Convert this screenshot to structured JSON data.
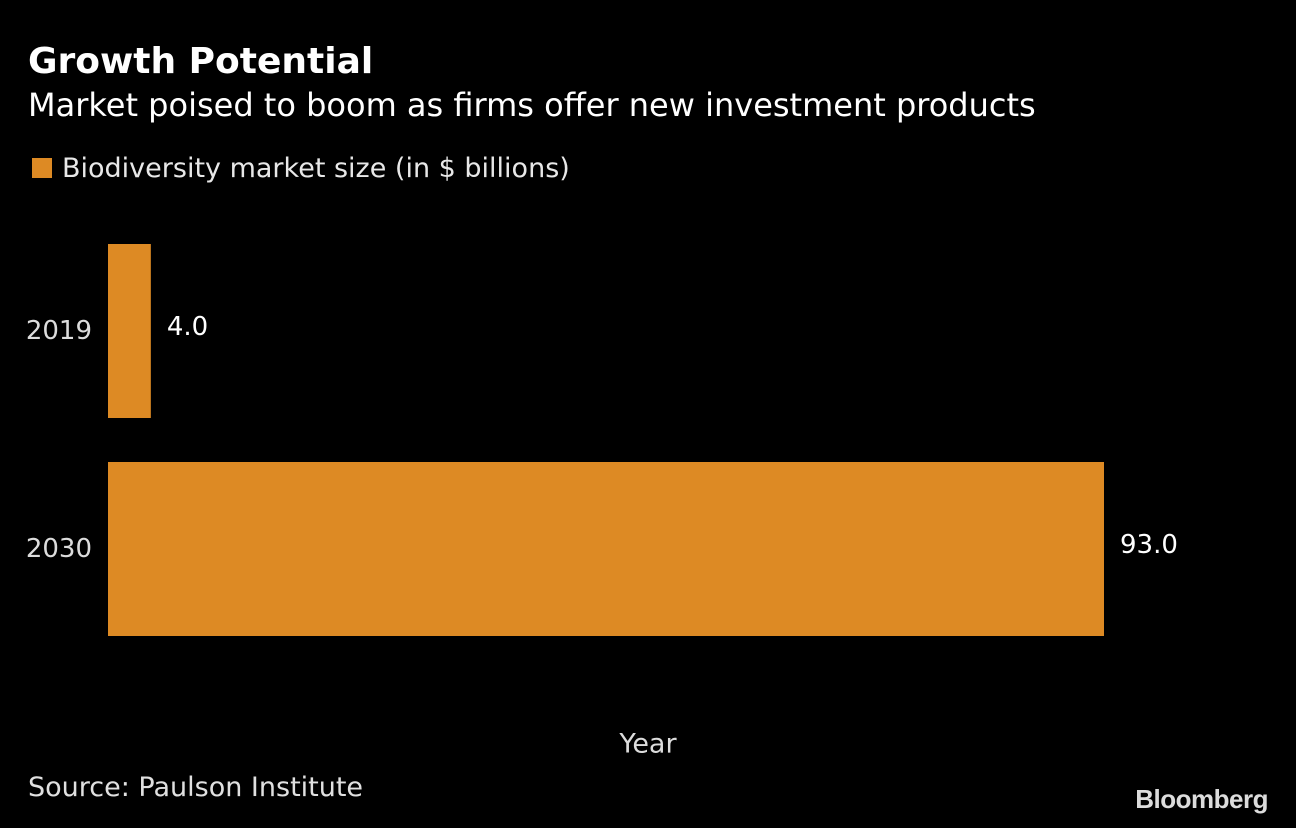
{
  "header": {
    "title": "Growth Potential",
    "subtitle": "Market poised to boom as firms offer new investment products"
  },
  "legend": {
    "label": "Biodiversity market size (in $ billions)",
    "color": "#dd8a24"
  },
  "chart_data": {
    "type": "bar",
    "orientation": "horizontal",
    "categories": [
      "2019",
      "2030"
    ],
    "series": [
      {
        "name": "Biodiversity market size (in $ billions)",
        "values": [
          4.0,
          93.0
        ],
        "value_labels": [
          "4.0",
          "93.0"
        ],
        "color": "#dd8a24"
      }
    ],
    "xlim": [
      0,
      93
    ],
    "xlabel": "Year",
    "ylabel": "",
    "grid": false,
    "legend_position": "top-left"
  },
  "footer": {
    "source": "Source: Paulson Institute",
    "logo_text": "Bloomberg"
  }
}
